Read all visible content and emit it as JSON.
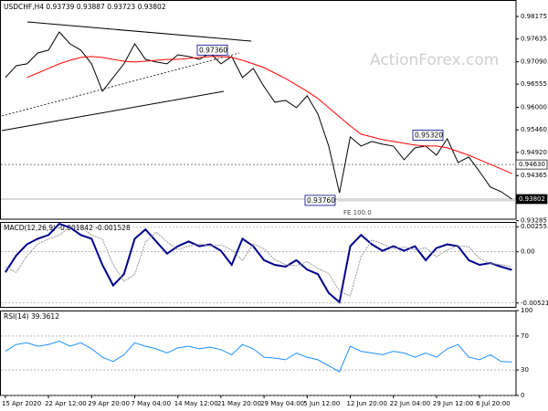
{
  "chart_data": [
    {
      "type": "line",
      "title": "USDCHF,H4  0.93739 0.93887 0.93723 0.93802",
      "watermark": "ActionForex.com",
      "series": [
        {
          "color": "#000000",
          "values": [
            0.96712,
            0.96996,
            0.9704,
            0.97302,
            0.97368,
            0.97805,
            0.97521,
            0.97368,
            0.9704,
            0.96384,
            0.96712,
            0.9704,
            0.97521,
            0.97149,
            0.97084,
            0.9704,
            0.97258,
            0.97215,
            0.97149,
            0.97302,
            0.9704,
            0.97215,
            0.96712,
            0.96931,
            0.96493,
            0.96122,
            0.96165,
            0.95991,
            0.96275,
            0.95838,
            0.95072,
            0.9395,
            0.95291,
            0.95072,
            0.95182,
            0.95116,
            0.95072,
            0.94745,
            0.95029,
            0.95072,
            0.94854,
            0.95247,
            0.94679,
            0.9481,
            0.9446,
            0.94089,
            0.93979,
            0.93802
          ]
        },
        {
          "color": "#ff0000",
          "values": [
            null,
            null,
            0.96712,
            0.96821,
            0.96931,
            0.9704,
            0.97127,
            0.97193,
            0.97215,
            0.97193,
            0.97149,
            0.97105,
            0.97084,
            0.97105,
            0.97127,
            0.97149,
            0.97149,
            0.97171,
            0.97193,
            0.97215,
            0.97215,
            0.97193,
            0.97127,
            0.9704,
            0.96952,
            0.96821,
            0.9669,
            0.96537,
            0.96384,
            0.96209,
            0.95991,
            0.95772,
            0.95553,
            0.95357,
            0.95291,
            0.95225,
            0.95182,
            0.95138,
            0.95094,
            0.95072,
            0.95072,
            0.95029,
            0.94941,
            0.94854,
            0.94745,
            0.94635,
            0.94526,
            0.94417
          ]
        }
      ],
      "ylim": [
        0.9332,
        0.9857
      ],
      "yticks": [
        0.98175,
        0.97635,
        {
          "value": 0.9709,
          "label": "0.97090"
        },
        0.96555,
        {
          "value": 0.96,
          "label": "0.96000"
        },
        {
          "value": 0.9546,
          "label": "0.95460"
        },
        {
          "value": 0.9492,
          "label": "0.94920"
        },
        0.94365,
        0.93285
      ],
      "levels": [
        {
          "value": 0.9463,
          "label": "0.94630"
        },
        {
          "value": 0.93802,
          "label": "0.93802"
        }
      ],
      "annotations": [
        {
          "value": 0.9736,
          "label": "0.97360"
        },
        {
          "value": 0.9532,
          "label": "0.95320"
        },
        {
          "value": 0.9376,
          "label": "0.93760"
        },
        {
          "value": 0.9376,
          "label": "FE 100.0"
        }
      ]
    },
    {
      "type": "line",
      "title": "MACD(12,26,9) -0.001842 -0.001528",
      "series": [
        {
          "color": "#00008b",
          "values": [
            -0.00209,
            -0.00038,
            0.00076,
            0.00133,
            0.00171,
            0.00285,
            0.00247,
            0.00171,
            0.00133,
            -0.00133,
            -0.00342,
            -0.00228,
            0.00133,
            0.00228,
            0.00105,
            -0.00019,
            0.00057,
            0.00105,
            0.00057,
            0.00076,
            0.0001,
            -0.00133,
            0.00133,
            0.00057,
            -0.00086,
            -0.00133,
            -0.00152,
            -0.00086,
            -0.00181,
            -0.00228,
            -0.00418,
            -0.00513,
            0.00057,
            0.00171,
            0.00076,
            0.0001,
            0.00057,
            0.0001,
            0.00057,
            -0.00086,
            0.00038,
            0.00076,
            0.00057,
            -0.00086,
            -0.00133,
            -0.00114,
            -0.00152,
            -0.001842
          ]
        },
        {
          "color": "#999999",
          "values": [
            -0.0015,
            -0.0021,
            -0.0004,
            0.0008,
            0.0013,
            0.0017,
            0.0025,
            0.0025,
            0.0017,
            0.0013,
            -0.0013,
            -0.003,
            -0.0023,
            0.001,
            0.002,
            0.001,
            0.0002,
            0.0006,
            0.0008,
            0.0006,
            0.0007,
            0.0002,
            -0.0009,
            0.0008,
            0.0003,
            -0.0008,
            -0.0013,
            -0.0014,
            -0.001,
            -0.0017,
            -0.0022,
            -0.004,
            -0.0045,
            -0.0005,
            0.0012,
            0.0008,
            0.0003,
            0.0005,
            0.0002,
            0.0004,
            -0.0005,
            0.0002,
            0.0006,
            0.0005,
            -0.0007,
            -0.0012,
            -0.0013,
            -0.001528
          ]
        }
      ],
      "ylim": [
        -0.0057,
        0.00304
      ],
      "yticks": [
        0.002553,
        {
          "value": 0,
          "label": "0.00"
        },
        -0.005212
      ]
    },
    {
      "type": "line",
      "title": "RSI(14) 39.3612",
      "categories": [
        "15 Apr 2020",
        null,
        null,
        null,
        "22 Apr 12:00",
        null,
        null,
        null,
        "29 Apr 20:00",
        null,
        null,
        null,
        "7 May 04:00",
        null,
        null,
        null,
        "14 May 12:00",
        null,
        null,
        null,
        "21 May 20:00",
        null,
        null,
        null,
        "29 May 04:00",
        null,
        null,
        null,
        "5 Jun 12:00",
        null,
        null,
        null,
        "12 Jun 20:00",
        null,
        null,
        null,
        "22 Jun 04:00",
        null,
        null,
        null,
        "29 Jun 12:00",
        null,
        null,
        null,
        "6 Jul 20:00",
        null,
        null,
        null
      ],
      "series": [
        {
          "color": "#1e90ff",
          "values": [
            52,
            60,
            62,
            58,
            60,
            64,
            58,
            62,
            55,
            45,
            40,
            48,
            62,
            58,
            55,
            50,
            56,
            58,
            55,
            57,
            54,
            48,
            60,
            55,
            45,
            44,
            42,
            50,
            45,
            42,
            35,
            28,
            58,
            52,
            50,
            48,
            52,
            50,
            45,
            50,
            45,
            55,
            60,
            45,
            42,
            48,
            40,
            39.3612
          ]
        }
      ],
      "ylim": [
        0,
        100
      ],
      "yticks": [
        100,
        70,
        30,
        0
      ]
    }
  ]
}
